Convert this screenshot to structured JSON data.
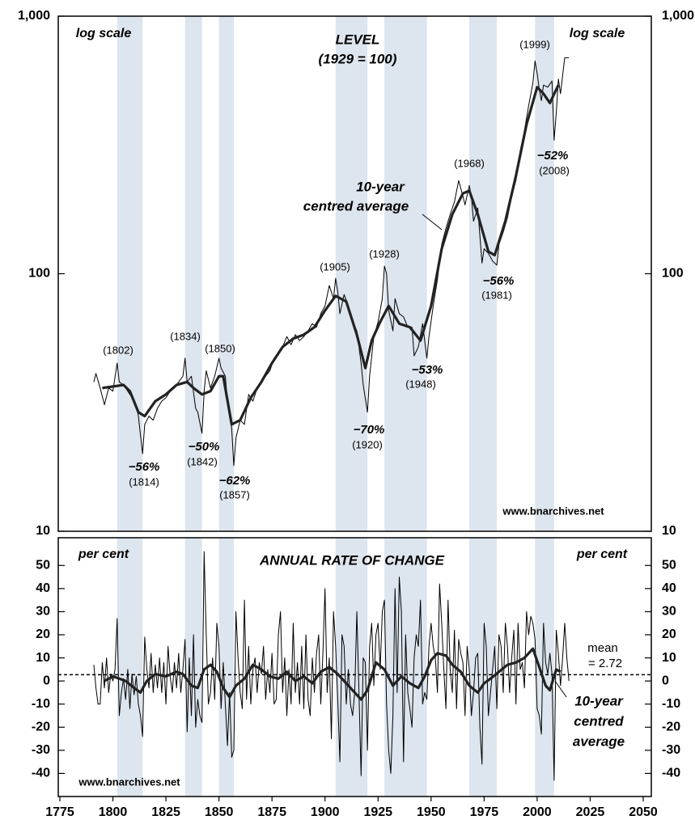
{
  "chart_data": [
    {
      "type": "line",
      "title": "LEVEL",
      "subtitle": "(1929 = 100)",
      "y_axis_note": "log scale",
      "log_scale": true,
      "xlim": [
        1775,
        2050
      ],
      "ylim": [
        10,
        1000
      ],
      "yticks": [
        10,
        100,
        {
          "value": 1000,
          "label": "1,000"
        }
      ],
      "shaded_periods": [
        [
          1802,
          1814
        ],
        [
          1834,
          1842
        ],
        [
          1850,
          1857
        ],
        [
          1905,
          1920
        ],
        [
          1928,
          1948
        ],
        [
          1968,
          1981
        ],
        [
          1999,
          2008
        ]
      ],
      "shade_color": "#dde5ee",
      "series": [
        {
          "color": "#000000",
          "line_width": 1,
          "x": [
            1791,
            1792,
            1794,
            1796,
            1798,
            1800,
            1802,
            1803,
            1805,
            1807,
            1809,
            1811,
            1812,
            1814,
            1815,
            1817,
            1819,
            1821,
            1823,
            1825,
            1827,
            1829,
            1831,
            1833,
            1834,
            1835,
            1837,
            1839,
            1840,
            1842,
            1843,
            1844,
            1846,
            1848,
            1850,
            1851,
            1853,
            1854,
            1856,
            1857,
            1858,
            1860,
            1862,
            1864,
            1866,
            1868,
            1870,
            1872,
            1874,
            1876,
            1878,
            1880,
            1882,
            1884,
            1886,
            1888,
            1890,
            1892,
            1894,
            1896,
            1898,
            1900,
            1902,
            1904,
            1905,
            1906,
            1907,
            1909,
            1911,
            1913,
            1915,
            1917,
            1918,
            1920,
            1921,
            1923,
            1925,
            1927,
            1928,
            1929,
            1930,
            1932,
            1933,
            1935,
            1937,
            1939,
            1941,
            1942,
            1944,
            1946,
            1948,
            1949,
            1951,
            1953,
            1955,
            1957,
            1959,
            1961,
            1963,
            1965,
            1966,
            1968,
            1969,
            1970,
            1972,
            1974,
            1975,
            1977,
            1979,
            1981,
            1982,
            1984,
            1986,
            1988,
            1990,
            1992,
            1994,
            1996,
            1998,
            1999,
            2000,
            2001,
            2002,
            2003,
            2005,
            2007,
            2008,
            2009,
            2010,
            2011,
            2013,
            2015
          ],
          "values": [
            38,
            41,
            36,
            31,
            36,
            35,
            45,
            38,
            37,
            35,
            33,
            31,
            28,
            20,
            26,
            28,
            27,
            30,
            32,
            33,
            35,
            36,
            38,
            40,
            47,
            38,
            40,
            30,
            29,
            24,
            35,
            42,
            36,
            40,
            47,
            43,
            40,
            32,
            25,
            18,
            23,
            27,
            26,
            34,
            32,
            36,
            38,
            40,
            42,
            47,
            49,
            52,
            57,
            53,
            58,
            55,
            57,
            60,
            64,
            62,
            70,
            75,
            90,
            80,
            96,
            85,
            70,
            83,
            75,
            65,
            60,
            45,
            37,
            29,
            40,
            57,
            65,
            80,
            107,
            100,
            72,
            60,
            80,
            70,
            68,
            62,
            62,
            48,
            52,
            64,
            47,
            57,
            75,
            95,
            130,
            150,
            170,
            190,
            230,
            200,
            185,
            220,
            200,
            160,
            180,
            110,
            125,
            120,
            112,
            108,
            130,
            145,
            165,
            200,
            230,
            300,
            360,
            450,
            550,
            670,
            600,
            520,
            470,
            540,
            530,
            560,
            330,
            420,
            570,
            500,
            690,
            690
          ]
        },
        {
          "color": "#222222",
          "line_width": 3.2,
          "x": [
            1795,
            1800,
            1805,
            1808,
            1812,
            1815,
            1820,
            1825,
            1830,
            1835,
            1838,
            1842,
            1846,
            1850,
            1852,
            1856,
            1860,
            1865,
            1870,
            1875,
            1880,
            1885,
            1890,
            1895,
            1900,
            1905,
            1910,
            1915,
            1919,
            1922,
            1926,
            1930,
            1935,
            1940,
            1945,
            1950,
            1955,
            1960,
            1965,
            1968,
            1972,
            1977,
            1980,
            1985,
            1990,
            1995,
            2000,
            2003,
            2006,
            2010
          ],
          "values": [
            36,
            36.5,
            37,
            35,
            29,
            28,
            32,
            34,
            37,
            38,
            36,
            34,
            35,
            40,
            40,
            26,
            27,
            33,
            38,
            45,
            52,
            56,
            58,
            62,
            72,
            82,
            78,
            58,
            43,
            55,
            65,
            75,
            64,
            62,
            55,
            75,
            125,
            170,
            205,
            210,
            170,
            122,
            118,
            160,
            240,
            380,
            530,
            500,
            460,
            540
          ]
        }
      ],
      "annotations": [
        "10-year",
        "centred average",
        "(1802)",
        "−56%",
        "(1814)",
        "(1834)",
        "(1850)",
        "−50%",
        "(1842)",
        "−62%",
        "(1857)",
        "(1905)",
        "(1928)",
        "−70%",
        "(1920)",
        "−53%",
        "(1948)",
        "(1968)",
        "−56%",
        "(1981)",
        "(1999)",
        "−52%",
        "(2008)"
      ],
      "source": "www.bnarchives.net"
    },
    {
      "type": "line",
      "title": "ANNUAL RATE OF CHANGE",
      "y_axis_note": "per cent",
      "log_scale": false,
      "xlim": [
        1775,
        2050
      ],
      "ylim": [
        -50,
        62
      ],
      "xticks": [
        1775,
        1800,
        1825,
        1850,
        1875,
        1900,
        1925,
        1950,
        1975,
        2000,
        2025,
        2050
      ],
      "yticks": [
        -40,
        -30,
        -20,
        -10,
        0,
        10,
        20,
        30,
        40,
        50
      ],
      "shaded_periods": [
        [
          1802,
          1814
        ],
        [
          1834,
          1842
        ],
        [
          1850,
          1857
        ],
        [
          1905,
          1920
        ],
        [
          1928,
          1948
        ],
        [
          1968,
          1981
        ],
        [
          1999,
          2008
        ]
      ],
      "shade_color": "#dde5ee",
      "mean_label": "mean",
      "mean": {
        "value": 2.72,
        "label": "= 2.72"
      },
      "series": [
        {
          "color": "#000000",
          "line_width": 1,
          "x": [
            1791,
            1792,
            1793,
            1794,
            1795,
            1796,
            1797,
            1798,
            1799,
            1800,
            1801,
            1802,
            1803,
            1804,
            1805,
            1806,
            1807,
            1808,
            1809,
            1810,
            1811,
            1812,
            1813,
            1814,
            1815,
            1816,
            1817,
            1818,
            1819,
            1820,
            1821,
            1822,
            1823,
            1824,
            1825,
            1826,
            1827,
            1828,
            1829,
            1830,
            1831,
            1832,
            1833,
            1834,
            1835,
            1836,
            1837,
            1838,
            1839,
            1840,
            1841,
            1842,
            1843,
            1844,
            1845,
            1846,
            1847,
            1848,
            1849,
            1850,
            1851,
            1852,
            1853,
            1854,
            1855,
            1856,
            1857,
            1858,
            1859,
            1860,
            1861,
            1862,
            1863,
            1864,
            1865,
            1866,
            1867,
            1868,
            1869,
            1870,
            1871,
            1872,
            1873,
            1874,
            1875,
            1876,
            1877,
            1878,
            1879,
            1880,
            1881,
            1882,
            1883,
            1884,
            1885,
            1886,
            1887,
            1888,
            1889,
            1890,
            1891,
            1892,
            1893,
            1894,
            1895,
            1896,
            1897,
            1898,
            1899,
            1900,
            1901,
            1902,
            1903,
            1904,
            1905,
            1906,
            1907,
            1908,
            1909,
            1910,
            1911,
            1912,
            1913,
            1914,
            1915,
            1916,
            1917,
            1918,
            1919,
            1920,
            1921,
            1922,
            1923,
            1924,
            1925,
            1926,
            1927,
            1928,
            1929,
            1930,
            1931,
            1932,
            1933,
            1934,
            1935,
            1936,
            1937,
            1938,
            1939,
            1940,
            1941,
            1942,
            1943,
            1944,
            1945,
            1946,
            1947,
            1948,
            1949,
            1950,
            1951,
            1952,
            1953,
            1954,
            1955,
            1956,
            1957,
            1958,
            1959,
            1960,
            1961,
            1962,
            1963,
            1964,
            1965,
            1966,
            1967,
            1968,
            1969,
            1970,
            1971,
            1972,
            1973,
            1974,
            1975,
            1976,
            1977,
            1978,
            1979,
            1980,
            1981,
            1982,
            1983,
            1984,
            1985,
            1986,
            1987,
            1988,
            1989,
            1990,
            1991,
            1992,
            1993,
            1994,
            1995,
            1996,
            1997,
            1998,
            1999,
            2000,
            2001,
            2002,
            2003,
            2004,
            2005,
            2006,
            2007,
            2008,
            2009,
            2010,
            2011,
            2012,
            2013,
            2014,
            2015
          ],
          "values": [
            7,
            -3,
            -10,
            -10,
            8,
            -3,
            10,
            -5,
            3,
            0,
            5,
            27,
            -15,
            -5,
            1,
            -8,
            5,
            -12,
            3,
            -6,
            2,
            -10,
            -15,
            -24,
            19,
            5,
            -3,
            12,
            -5,
            7,
            -3,
            10,
            -5,
            8,
            -10,
            15,
            2,
            -5,
            8,
            -3,
            12,
            -5,
            5,
            18,
            -22,
            10,
            -15,
            20,
            -20,
            -8,
            -15,
            -18,
            56,
            20,
            -10,
            -5,
            10,
            -8,
            25,
            15,
            -12,
            8,
            -10,
            -28,
            -5,
            -33,
            -30,
            30,
            10,
            -5,
            -12,
            35,
            -8,
            15,
            -10,
            5,
            10,
            -5,
            8,
            3,
            15,
            -8,
            5,
            -5,
            12,
            -10,
            -8,
            20,
            30,
            -5,
            10,
            -15,
            5,
            -10,
            25,
            -5,
            8,
            -10,
            15,
            -12,
            20,
            -8,
            -15,
            10,
            -5,
            12,
            20,
            -10,
            12,
            40,
            -5,
            10,
            -25,
            30,
            15,
            -8,
            -35,
            20,
            15,
            -10,
            5,
            -10,
            -15,
            -5,
            30,
            -5,
            -41,
            10,
            8,
            -30,
            15,
            25,
            -2,
            20,
            25,
            5,
            30,
            35,
            -10,
            -30,
            -40,
            -15,
            40,
            -5,
            45,
            30,
            -35,
            20,
            -5,
            -12,
            -20,
            10,
            20,
            15,
            35,
            -10,
            -5,
            -8,
            15,
            25,
            15,
            10,
            -5,
            42,
            25,
            5,
            -12,
            35,
            5,
            -5,
            22,
            -12,
            18,
            12,
            8,
            -15,
            15,
            5,
            -15,
            -5,
            10,
            12,
            -20,
            -36,
            25,
            15,
            -15,
            -5,
            5,
            15,
            -12,
            20,
            15,
            -5,
            25,
            15,
            -5,
            10,
            22,
            -10,
            25,
            5,
            8,
            -3,
            30,
            20,
            28,
            25,
            18,
            -12,
            -15,
            -23,
            25,
            8,
            3,
            12,
            3,
            -43,
            22,
            12,
            -2,
            10,
            25,
            10,
            0
          ]
        },
        {
          "color": "#222222",
          "line_width": 3.2,
          "x": [
            1796,
            1800,
            1803,
            1806,
            1810,
            1813,
            1816,
            1820,
            1825,
            1830,
            1833,
            1837,
            1840,
            1843,
            1846,
            1849,
            1852,
            1855,
            1858,
            1862,
            1866,
            1870,
            1874,
            1878,
            1882,
            1886,
            1890,
            1894,
            1898,
            1902,
            1906,
            1910,
            1914,
            1917,
            1920,
            1924,
            1928,
            1932,
            1936,
            1940,
            1944,
            1947,
            1950,
            1953,
            1957,
            1960,
            1964,
            1968,
            1972,
            1975,
            1978,
            1982,
            1986,
            1990,
            1994,
            1998,
            2001,
            2004,
            2006,
            2009,
            2011
          ],
          "values": [
            0,
            2,
            1,
            0,
            -3,
            -5,
            0,
            3,
            2,
            4,
            3,
            -2,
            -3,
            5,
            7,
            4,
            -3,
            -7,
            -2,
            1,
            7,
            5,
            2,
            1,
            4,
            0,
            2,
            -1,
            4,
            6,
            3,
            -1,
            -5,
            -8,
            -4,
            8,
            5,
            -2,
            2,
            -1,
            -3,
            2,
            9,
            12,
            11,
            7,
            4,
            -2,
            -5,
            -1,
            1,
            4,
            7,
            8,
            10,
            14,
            6,
            -2,
            -4,
            5,
            4
          ]
        }
      ],
      "annotations": [
        "10-year",
        "centred",
        "average"
      ],
      "source": "www.bnarchives.net"
    }
  ]
}
